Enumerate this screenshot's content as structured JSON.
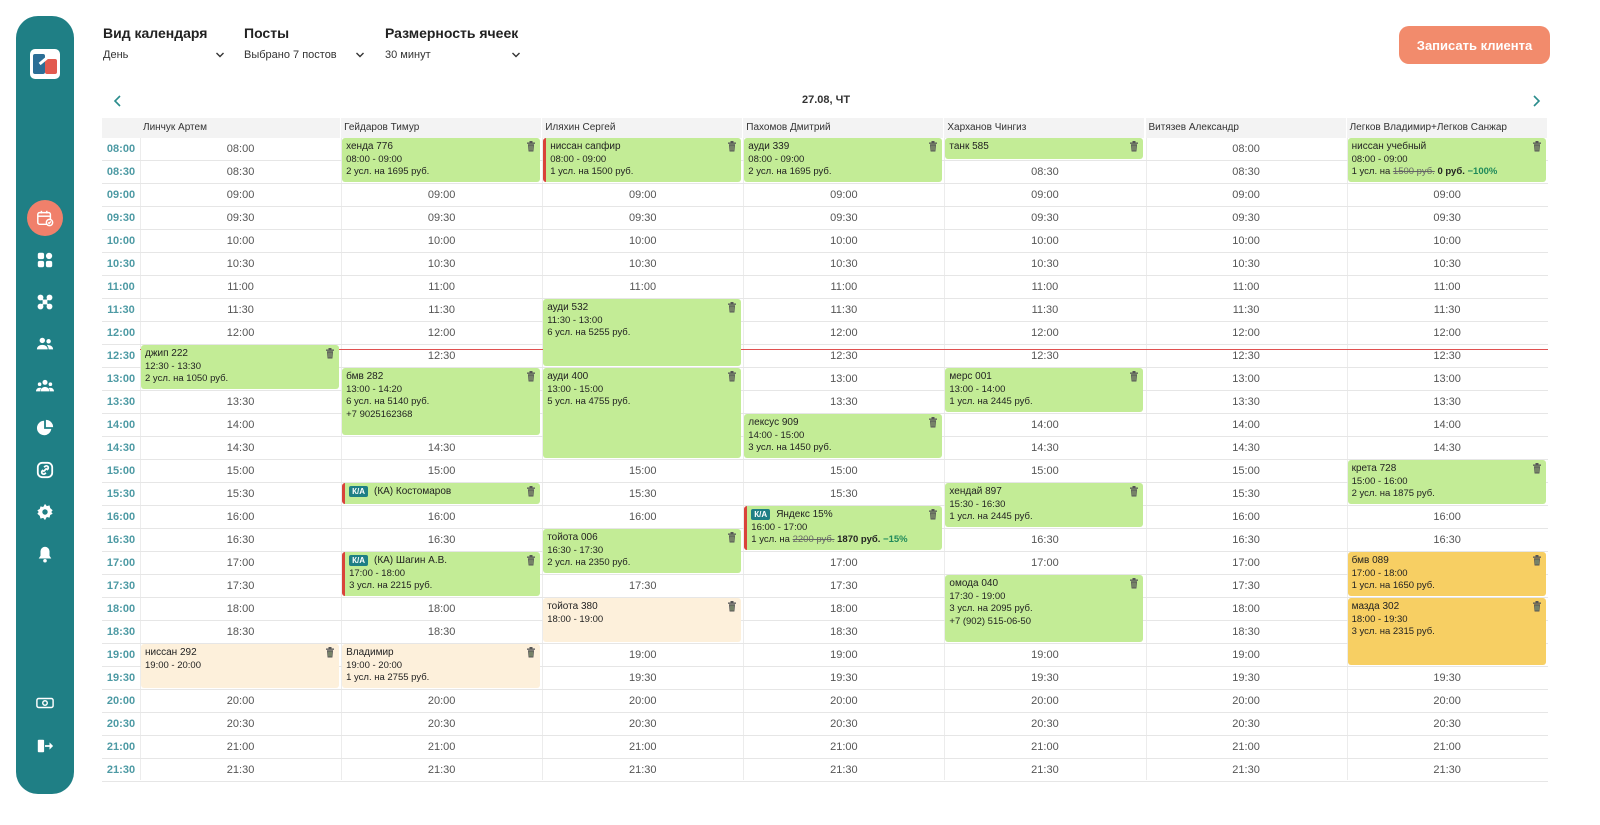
{
  "sidebar": {
    "items": [
      {
        "icon": "calendar-icon",
        "active": true
      },
      {
        "icon": "grid-icon"
      },
      {
        "icon": "network-icon"
      },
      {
        "icon": "users-icon"
      },
      {
        "icon": "group-icon"
      },
      {
        "icon": "pie-chart-icon"
      },
      {
        "icon": "link-icon"
      },
      {
        "icon": "gear-icon"
      },
      {
        "icon": "bell-icon"
      },
      {
        "icon": "cash-icon"
      },
      {
        "icon": "logout-icon"
      }
    ]
  },
  "filters": [
    {
      "label": "Вид календаря",
      "value": "День"
    },
    {
      "label": "Посты",
      "value": "Выбрано 7 постов"
    },
    {
      "label": "Размерность ячеек",
      "value": "30 минут"
    }
  ],
  "cta_label": "Записать клиента",
  "date_label": "27.08, ЧТ",
  "columns": [
    "Линчук Артем",
    "Гейдаров Тимур",
    "Иляхин Сергей",
    "Пахомов Дмитрий",
    "Харханов Чингиз",
    "Витязев Александр",
    "Легков Владимир+Легков Санжар"
  ],
  "times": [
    "08:00",
    "08:30",
    "09:00",
    "09:30",
    "10:00",
    "10:30",
    "11:00",
    "11:30",
    "12:00",
    "12:30",
    "13:00",
    "13:30",
    "14:00",
    "14:30",
    "15:00",
    "15:30",
    "16:00",
    "16:30",
    "17:00",
    "17:30",
    "18:00",
    "18:30",
    "19:00",
    "19:30",
    "20:00",
    "20:30",
    "21:00",
    "21:30"
  ],
  "appointments": [
    {
      "col": 0,
      "start": 9,
      "span": 2,
      "color": "green",
      "title": "джип 222",
      "lines": [
        "12:30 - 13:30",
        "2 усл. на 1050 руб."
      ]
    },
    {
      "col": 0,
      "start": 22,
      "span": 2,
      "color": "peach",
      "title": "ниссан 292",
      "lines": [
        "19:00 - 20:00"
      ]
    },
    {
      "col": 1,
      "start": 0,
      "span": 2,
      "color": "green",
      "title": "хенда 776",
      "lines": [
        "08:00 - 09:00",
        "2 усл. на 1695 руб."
      ]
    },
    {
      "col": 1,
      "start": 10,
      "span": 3,
      "color": "green",
      "title": "бмв 282",
      "lines": [
        "13:00 - 14:20",
        "6 усл. на 5140 руб.",
        "+7 9025162368"
      ]
    },
    {
      "col": 1,
      "start": 15,
      "span": 1,
      "color": "green",
      "red": true,
      "ka": true,
      "title": "(КА) Костомаров",
      "lines": []
    },
    {
      "col": 1,
      "start": 18,
      "span": 2,
      "color": "green",
      "red": true,
      "ka": true,
      "title": "(КА) Шагин А.В.",
      "lines": [
        "17:00 - 18:00",
        "3 усл. на 2215 руб."
      ]
    },
    {
      "col": 1,
      "start": 22,
      "span": 2,
      "color": "peach",
      "title": "Владимир",
      "lines": [
        "19:00 - 20:00",
        "1 усл. на 2755 руб."
      ]
    },
    {
      "col": 2,
      "start": 0,
      "span": 2,
      "color": "green",
      "red": true,
      "title": "ниссан сапфир",
      "lines": [
        "08:00 - 09:00",
        "1 усл. на 1500 руб."
      ]
    },
    {
      "col": 2,
      "start": 7,
      "span": 3,
      "color": "green",
      "title": "ауди 532",
      "lines": [
        "11:30 - 13:00",
        "6 усл. на 5255 руб."
      ]
    },
    {
      "col": 2,
      "start": 10,
      "span": 4,
      "color": "green",
      "title": "ауди 400",
      "lines": [
        "13:00 - 15:00",
        "5 усл. на 4755 руб."
      ]
    },
    {
      "col": 2,
      "start": 17,
      "span": 2,
      "color": "green",
      "title": "тойота 006",
      "lines": [
        "16:30 - 17:30",
        "2 усл. на 2350 руб."
      ]
    },
    {
      "col": 2,
      "start": 20,
      "span": 2,
      "color": "peach",
      "title": "тойота 380",
      "lines": [
        "18:00 - 19:00"
      ]
    },
    {
      "col": 3,
      "start": 0,
      "span": 2,
      "color": "green",
      "title": "ауди 339",
      "lines": [
        "08:00 - 09:00",
        "2 усл. на 1695 руб."
      ]
    },
    {
      "col": 3,
      "start": 12,
      "span": 2,
      "color": "green",
      "title": "лексус 909",
      "lines": [
        "14:00 - 15:00",
        "3 усл. на 1450 руб."
      ]
    },
    {
      "col": 3,
      "start": 16,
      "span": 2,
      "color": "green",
      "red": true,
      "ka": true,
      "title": "Яндекс 15%",
      "lines": [
        "16:00 - 17:00"
      ],
      "price": {
        "prefix": "1 усл. на",
        "old": "2200 руб.",
        "new": "1870 руб.",
        "disc": "−15%"
      }
    },
    {
      "col": 4,
      "start": 0,
      "span": 1,
      "color": "green",
      "title": "танк 585",
      "lines": []
    },
    {
      "col": 4,
      "start": 10,
      "span": 2,
      "color": "green",
      "title": "мерс 001",
      "lines": [
        "13:00 - 14:00",
        "1 усл. на 2445 руб."
      ]
    },
    {
      "col": 4,
      "start": 15,
      "span": 2,
      "color": "green",
      "title": "хендай 897",
      "lines": [
        "15:30 - 16:30",
        "1 усл. на 2445 руб."
      ]
    },
    {
      "col": 4,
      "start": 19,
      "span": 3,
      "color": "green",
      "title": "омода 040",
      "lines": [
        "17:30 - 19:00",
        "3 усл. на 2095 руб.",
        "+7 (902) 515-06-50"
      ]
    },
    {
      "col": 6,
      "start": 0,
      "span": 2,
      "color": "green",
      "title": "ниссан учебный",
      "lines": [
        "08:00 - 09:00"
      ],
      "price": {
        "prefix": "1 усл. на",
        "old": "1500 руб.",
        "new": "0 руб.",
        "disc": "−100%"
      }
    },
    {
      "col": 6,
      "start": 14,
      "span": 2,
      "color": "green",
      "title": "крета 728",
      "lines": [
        "15:00 - 16:00",
        "2 усл. на 1875 руб."
      ]
    },
    {
      "col": 6,
      "start": 18,
      "span": 2,
      "color": "yellow",
      "title": "бмв 089",
      "lines": [
        "17:00 - 18:00",
        "1 усл. на 1650 руб."
      ]
    },
    {
      "col": 6,
      "start": 20,
      "span": 3,
      "color": "yellow",
      "title": "мазда 302",
      "lines": [
        "18:00 - 19:30",
        "3 усл. на 2315 руб."
      ]
    }
  ]
}
